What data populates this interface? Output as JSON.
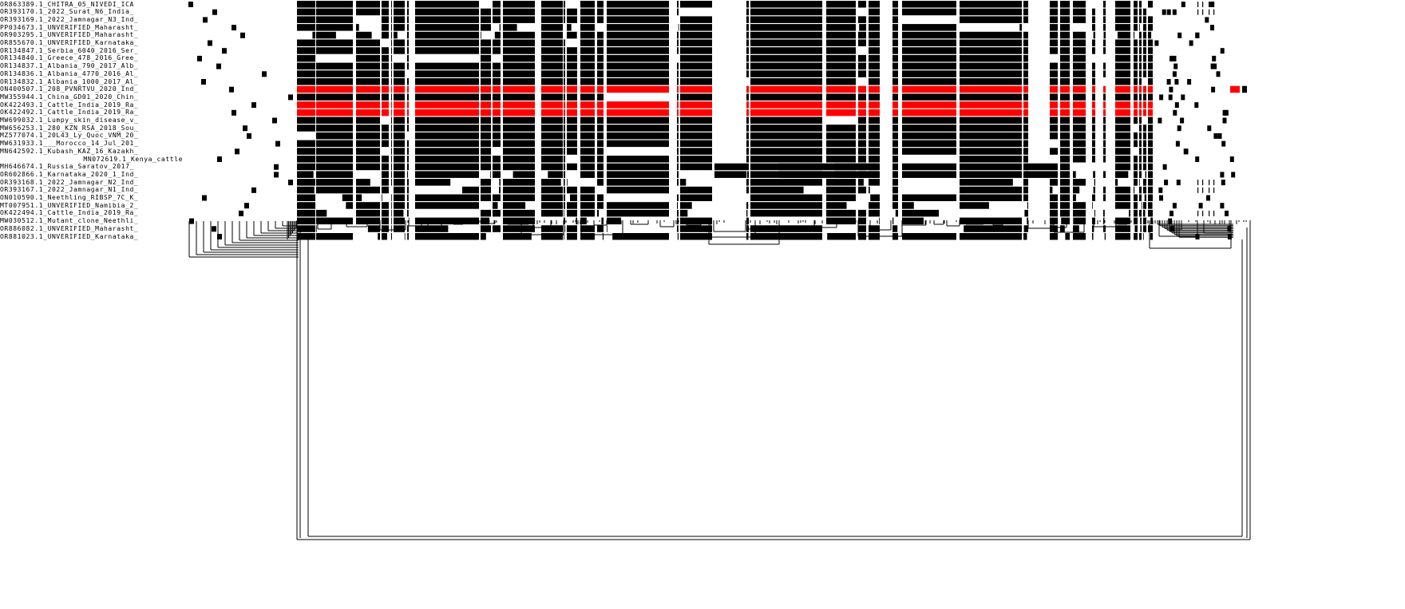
{
  "colors": {
    "background": "#ffffff",
    "segment": "#000000",
    "highlight": "#ff0000",
    "tree": "#000000"
  },
  "sequences": [
    {
      "label": "OR863389.1_CHITRA_05_NIVEDI_ICA",
      "highlight": false
    },
    {
      "label": "OR393170.1_2022_Surat_N6_India_",
      "highlight": false
    },
    {
      "label": "OR393169.1_2022_Jamnagar_N3_Ind_",
      "highlight": false
    },
    {
      "label": "PP034673.1_UNVERIFIED_Maharasht_",
      "highlight": false
    },
    {
      "label": "OR903295.1_UNVERIFIED_Maharasht_",
      "highlight": false
    },
    {
      "label": "OR855670.1_UNVERIFIED_Karnataka_",
      "highlight": false
    },
    {
      "label": "OR134847.1_Serbia_6040_2016_Ser_",
      "highlight": false
    },
    {
      "label": "OR134840.1_Greece_478_2016_Gree_",
      "highlight": false
    },
    {
      "label": "OR134837.1_Albania_790_2017_Alb_",
      "highlight": false
    },
    {
      "label": "OR134836.1_Albania_4770_2016_Al_",
      "highlight": false
    },
    {
      "label": "OR134832.1_Albania_1000_2017_Al_",
      "highlight": false
    },
    {
      "label": "ON400507.1_208_PVNRTVU_2020_Ind_",
      "highlight": true
    },
    {
      "label": "MW355944.1_China_GD01_2020_Chin_",
      "highlight": false
    },
    {
      "label": "OK422493.1_Cattle_India_2019_Ra_",
      "highlight": true
    },
    {
      "label": "OK422492.1_Cattle_India_2019_Ra_",
      "highlight": true
    },
    {
      "label": "MW699032.1_Lumpy_skin_disease_v_",
      "highlight": false
    },
    {
      "label": "MW656253.1_280_KZN_RSA_2018_Sou_",
      "highlight": false
    },
    {
      "label": "MZ577074.1_20L43_Ly_Quoc_VNM_20_",
      "highlight": false
    },
    {
      "label": "MW631933.1___Morocco_14_Jul_201_",
      "highlight": false
    },
    {
      "label": "MN642592.1_Kubash_KAZ_16_Kazakh_",
      "highlight": false
    },
    {
      "label": "MN072619.1_Kenya_cattle",
      "highlight": false
    },
    {
      "label": "MH646674.1_Russia_Saratov_2017_",
      "highlight": false
    },
    {
      "label": "OR602866.1_Karnataka_2020_1_Ind_",
      "highlight": false
    },
    {
      "label": "OR393168.1_2022_Jamnagar_N2_Ind_",
      "highlight": false
    },
    {
      "label": "OR393167.1_2022_Jamnagar_N1_Ind_",
      "highlight": false
    },
    {
      "label": "ON010590.1_Neethling_RIBSP_7C_K_",
      "highlight": false
    },
    {
      "label": "MT007951.1_UNVERIFIED_Namibia_2_",
      "highlight": false
    },
    {
      "label": "OK422494.1_Cattle_India_2019_Ra_",
      "highlight": false
    },
    {
      "label": "MW030512.1_Mutant_clone_Neethli_",
      "highlight": false
    },
    {
      "label": "OR886082.1_UNVERIFIED_Maharasht_",
      "highlight": false
    },
    {
      "label": "OR881023.1_UNVERIFIED_Karnataka_",
      "highlight": false
    }
  ]
}
